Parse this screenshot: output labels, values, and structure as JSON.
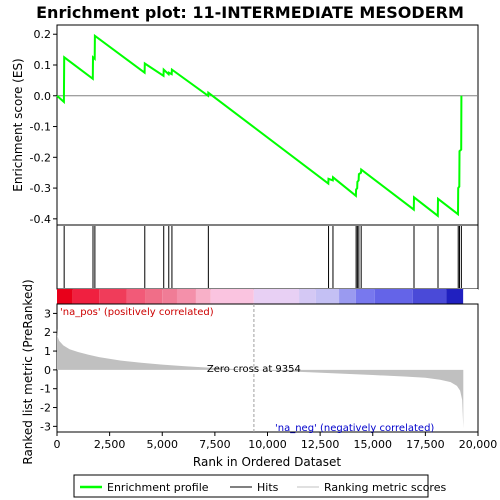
{
  "chart_data": {
    "type": "line",
    "title": "Enrichment plot: 11-INTERMEDIATE MESODERM",
    "xlabel": "Rank in Ordered Dataset",
    "x_range": [
      0,
      20000
    ],
    "x_ticks": [
      0,
      2500,
      5000,
      7500,
      10000,
      12500,
      15000,
      17500,
      20000
    ],
    "x_tick_labels": [
      "0",
      "2,500",
      "5,000",
      "7,500",
      "10,000",
      "12,500",
      "15,000",
      "17,500",
      "20,000"
    ],
    "n_genes": 19300,
    "top_panel": {
      "ylabel": "Enrichment score (ES)",
      "ylim": [
        -0.42,
        0.23
      ],
      "y_ticks": [
        -0.4,
        -0.3,
        -0.2,
        -0.1,
        0.0,
        0.1,
        0.2
      ],
      "y_tick_labels": [
        "-0.4",
        "-0.3",
        "-0.2",
        "-0.1",
        "0.0",
        "0.1",
        "0.2"
      ],
      "series": [
        {
          "name": "Enrichment profile",
          "color": "#00ff00",
          "x": [
            0,
            330,
            340,
            1700,
            1710,
            1790,
            1800,
            4160,
            4170,
            5060,
            5070,
            5300,
            5310,
            5450,
            5460,
            7180,
            7190,
            12890,
            12900,
            13100,
            13110,
            14200,
            14210,
            14260,
            14270,
            14330,
            14340,
            14440,
            14450,
            16950,
            16960,
            18090,
            18100,
            19050,
            19060,
            19110,
            19120,
            19200,
            19210
          ],
          "y": [
            0.0,
            -0.02,
            0.125,
            0.055,
            0.125,
            0.12,
            0.195,
            0.075,
            0.105,
            0.065,
            0.085,
            0.07,
            0.075,
            0.07,
            0.085,
            0.0,
            0.01,
            -0.285,
            -0.27,
            -0.275,
            -0.265,
            -0.325,
            -0.305,
            -0.3,
            -0.28,
            -0.275,
            -0.255,
            -0.25,
            -0.24,
            -0.37,
            -0.33,
            -0.39,
            -0.335,
            -0.385,
            -0.3,
            -0.295,
            -0.18,
            -0.175,
            0.0
          ]
        }
      ]
    },
    "hits_panel": {
      "name": "Hits",
      "positions": [
        340,
        1710,
        1800,
        4170,
        5070,
        5310,
        5460,
        7190,
        12900,
        13110,
        14210,
        14270,
        14340,
        14450,
        16960,
        18100,
        19060,
        19120,
        19210
      ]
    },
    "colorbar": {
      "segments": [
        {
          "from": 0,
          "to": 750,
          "color": "#e8001a"
        },
        {
          "from": 750,
          "to": 2000,
          "color": "#f02040"
        },
        {
          "from": 2000,
          "to": 3300,
          "color": "#f03c5a"
        },
        {
          "from": 3300,
          "to": 4200,
          "color": "#f25a78"
        },
        {
          "from": 4200,
          "to": 5000,
          "color": "#f06e88"
        },
        {
          "from": 5000,
          "to": 5700,
          "color": "#f07c96"
        },
        {
          "from": 5700,
          "to": 6600,
          "color": "#f490aa"
        },
        {
          "from": 6600,
          "to": 7300,
          "color": "#f8b0c8"
        },
        {
          "from": 7300,
          "to": 9350,
          "color": "#fac4e0"
        },
        {
          "from": 9350,
          "to": 11500,
          "color": "#e8d0f4"
        },
        {
          "from": 11500,
          "to": 12300,
          "color": "#d4c8f4"
        },
        {
          "from": 12300,
          "to": 13400,
          "color": "#c4c0f4"
        },
        {
          "from": 13400,
          "to": 14200,
          "color": "#9a9af0"
        },
        {
          "from": 14200,
          "to": 15100,
          "color": "#7878ee"
        },
        {
          "from": 15100,
          "to": 16900,
          "color": "#6464e8"
        },
        {
          "from": 16900,
          "to": 18500,
          "color": "#4a4ad8"
        },
        {
          "from": 18500,
          "to": 19300,
          "color": "#2020c0"
        }
      ]
    },
    "bottom_panel": {
      "ylabel": "Ranked list metric (PreRanked)",
      "ylim": [
        -3.3,
        3.5
      ],
      "y_ticks": [
        -3,
        -2,
        -1,
        0,
        1,
        2,
        3
      ],
      "y_tick_labels": [
        "-3",
        "-2",
        "-1",
        "0",
        "1",
        "2",
        "3"
      ],
      "series": [
        {
          "name": "Ranking metric scores",
          "color": "#c0c0c0",
          "x": [
            0,
            20,
            100,
            300,
            600,
            1000,
            1500,
            2000,
            3000,
            4000,
            5000,
            6000,
            7000,
            8000,
            9354,
            10500,
            12000,
            13500,
            15000,
            16500,
            17500,
            18200,
            18700,
            19000,
            19150,
            19250,
            19300
          ],
          "y": [
            2.2,
            1.8,
            1.55,
            1.3,
            1.1,
            0.95,
            0.8,
            0.68,
            0.5,
            0.38,
            0.28,
            0.2,
            0.13,
            0.07,
            0.0,
            -0.06,
            -0.13,
            -0.2,
            -0.27,
            -0.35,
            -0.42,
            -0.52,
            -0.65,
            -0.85,
            -1.1,
            -1.6,
            -3.1
          ]
        }
      ],
      "zero_cross_label": "Zero cross at 9354",
      "zero_cross_x": 9354,
      "pos_label": "'na_pos' (positively correlated)",
      "neg_label": "'na_neg' (negatively correlated)"
    },
    "legend": {
      "placement": "bottom",
      "items": [
        {
          "label": "Enrichment profile",
          "color": "#00ff00"
        },
        {
          "label": "Hits",
          "color": "#000000"
        },
        {
          "label": "Ranking metric scores",
          "color": "#c0c0c0"
        }
      ]
    }
  }
}
